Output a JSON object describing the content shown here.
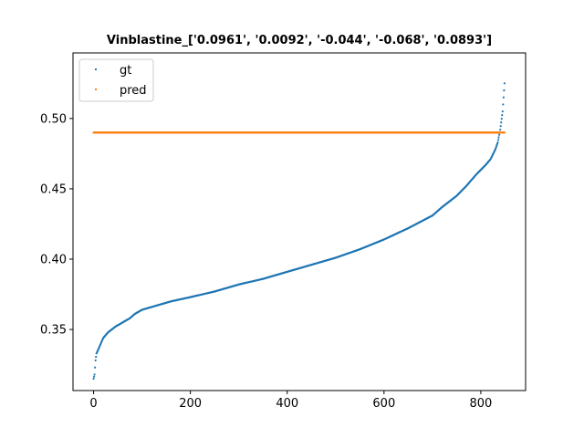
{
  "chart_data": {
    "type": "scatter",
    "title": "Vinblastine_['0.0961', '0.0092', '-0.044', '-0.068', '0.0893']",
    "xlabel": "",
    "ylabel": "",
    "xlim": [
      -42.5,
      892.5
    ],
    "ylim": [
      0.3066,
      0.5466
    ],
    "xticks": [
      0,
      200,
      400,
      600,
      800
    ],
    "yticks": [
      0.35,
      0.4,
      0.45,
      0.5
    ],
    "xtick_labels": [
      "0",
      "200",
      "400",
      "600",
      "800"
    ],
    "ytick_labels": [
      "0.35",
      "0.40",
      "0.45",
      "0.50"
    ],
    "grid": false,
    "legend_placement": "top-left",
    "n_points": 850,
    "series": [
      {
        "name": "gt",
        "color": "#1f77b4",
        "curve_points": [
          [
            0,
            0.315
          ],
          [
            2,
            0.318
          ],
          [
            4,
            0.328
          ],
          [
            6,
            0.333
          ],
          [
            10,
            0.336
          ],
          [
            15,
            0.34
          ],
          [
            20,
            0.344
          ],
          [
            30,
            0.348
          ],
          [
            45,
            0.352
          ],
          [
            60,
            0.355
          ],
          [
            75,
            0.358
          ],
          [
            85,
            0.361
          ],
          [
            100,
            0.364
          ],
          [
            130,
            0.367
          ],
          [
            160,
            0.37
          ],
          [
            200,
            0.373
          ],
          [
            250,
            0.377
          ],
          [
            300,
            0.382
          ],
          [
            350,
            0.386
          ],
          [
            400,
            0.391
          ],
          [
            450,
            0.396
          ],
          [
            500,
            0.401
          ],
          [
            550,
            0.407
          ],
          [
            600,
            0.414
          ],
          [
            650,
            0.422
          ],
          [
            700,
            0.431
          ],
          [
            720,
            0.437
          ],
          [
            750,
            0.445
          ],
          [
            770,
            0.452
          ],
          [
            790,
            0.46
          ],
          [
            810,
            0.467
          ],
          [
            820,
            0.471
          ],
          [
            830,
            0.478
          ],
          [
            835,
            0.483
          ],
          [
            840,
            0.492
          ],
          [
            845,
            0.505
          ],
          [
            848,
            0.52
          ],
          [
            849,
            0.525
          ],
          [
            850,
            0.539
          ]
        ]
      },
      {
        "name": "pred",
        "color": "#ff7f0e",
        "value": 0.49
      }
    ]
  }
}
